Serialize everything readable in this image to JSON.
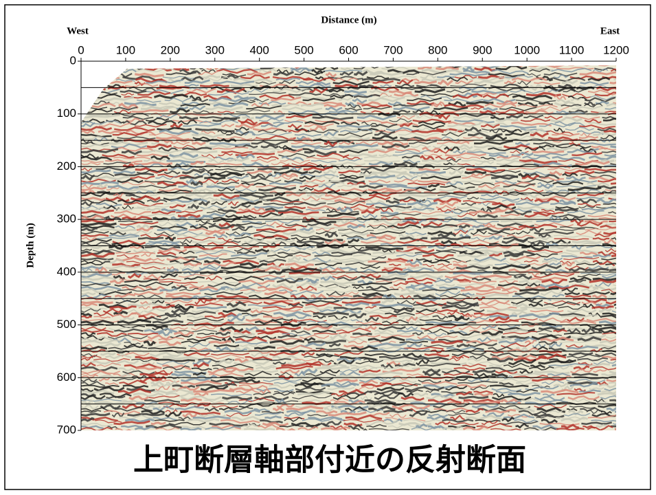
{
  "chart_data": {
    "type": "seismic-section",
    "title": "上町断層軸部付近の反射断面",
    "x_label": "Distance (m)",
    "y_label": "Depth (m)",
    "left_label": "West",
    "right_label": "East",
    "xlim": [
      0,
      1200
    ],
    "xticks": [
      0,
      100,
      200,
      300,
      400,
      500,
      600,
      700,
      800,
      900,
      1000,
      1100,
      1200
    ],
    "ylim": [
      0,
      700
    ],
    "yticks": [
      0,
      100,
      200,
      300,
      400,
      500,
      600,
      700
    ],
    "gridlines": [
      50,
      100,
      150,
      200,
      250,
      300,
      350,
      400,
      450,
      500,
      550,
      600,
      650
    ],
    "title_color": "#5a2ca0"
  }
}
